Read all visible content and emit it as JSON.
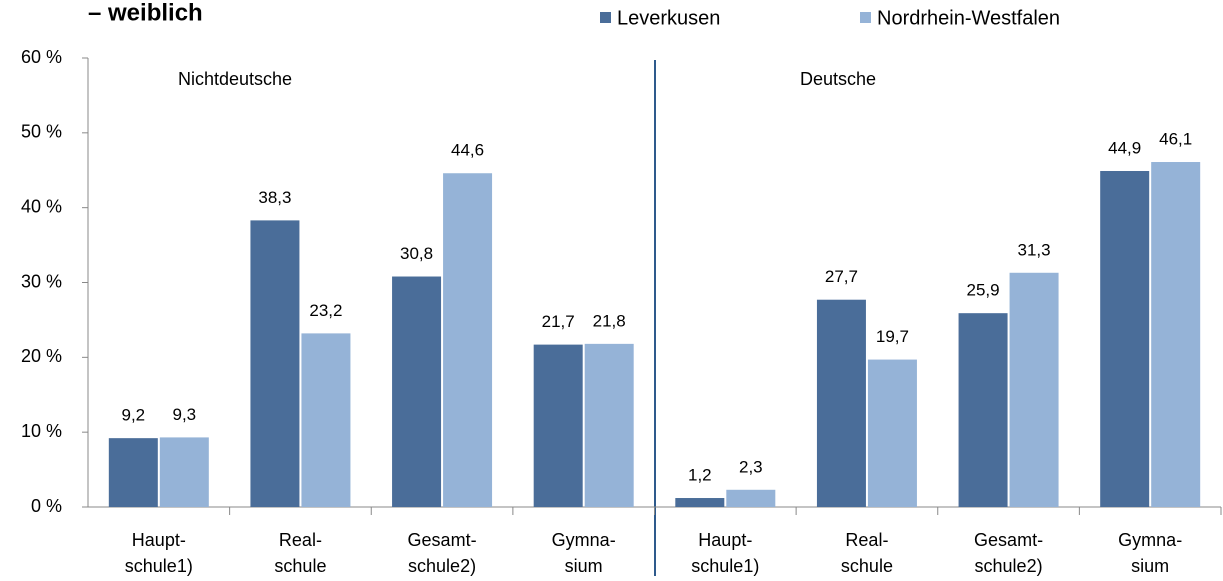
{
  "chart_data": {
    "type": "bar",
    "title": "– weiblich",
    "annotations": [
      "Nichtdeutsche",
      "Deutsche"
    ],
    "categories": [
      "Haupt-\nschule1)",
      "Real-\nschule",
      "Gesamt-\nschule2)",
      "Gymna-\nsium",
      "Haupt-\nschule1)",
      "Real-\nschule",
      "Gesamt-\nschule2)",
      "Gymna-\nsium"
    ],
    "series": [
      {
        "name": "Leverkusen",
        "color": "#4a6d99",
        "values": [
          9.2,
          38.3,
          30.8,
          21.7,
          1.2,
          27.7,
          25.9,
          44.9
        ],
        "value_labels": [
          "9,2",
          "38,3",
          "30,8",
          "21,7",
          "1,2",
          "27,7",
          "25,9",
          "44,9"
        ]
      },
      {
        "name": "Nordrhein-Westfalen",
        "color": "#95b3d7",
        "values": [
          9.3,
          23.2,
          44.6,
          21.8,
          2.3,
          19.7,
          31.3,
          46.1
        ],
        "value_labels": [
          "9,3",
          "23,2",
          "44,6",
          "21,8",
          "2,3",
          "19,7",
          "31,3",
          "46,1"
        ]
      }
    ],
    "ylim": [
      0,
      60
    ],
    "yticks": [
      {
        "value": 0,
        "label": "0 %"
      },
      {
        "value": 10,
        "label": "10 %"
      },
      {
        "value": 20,
        "label": "20 %"
      },
      {
        "value": 30,
        "label": "30 %"
      },
      {
        "value": 40,
        "label": "40 %"
      },
      {
        "value": 50,
        "label": "50 %"
      },
      {
        "value": 60,
        "label": "60 %"
      }
    ],
    "legend": "top-right",
    "grid": false
  }
}
